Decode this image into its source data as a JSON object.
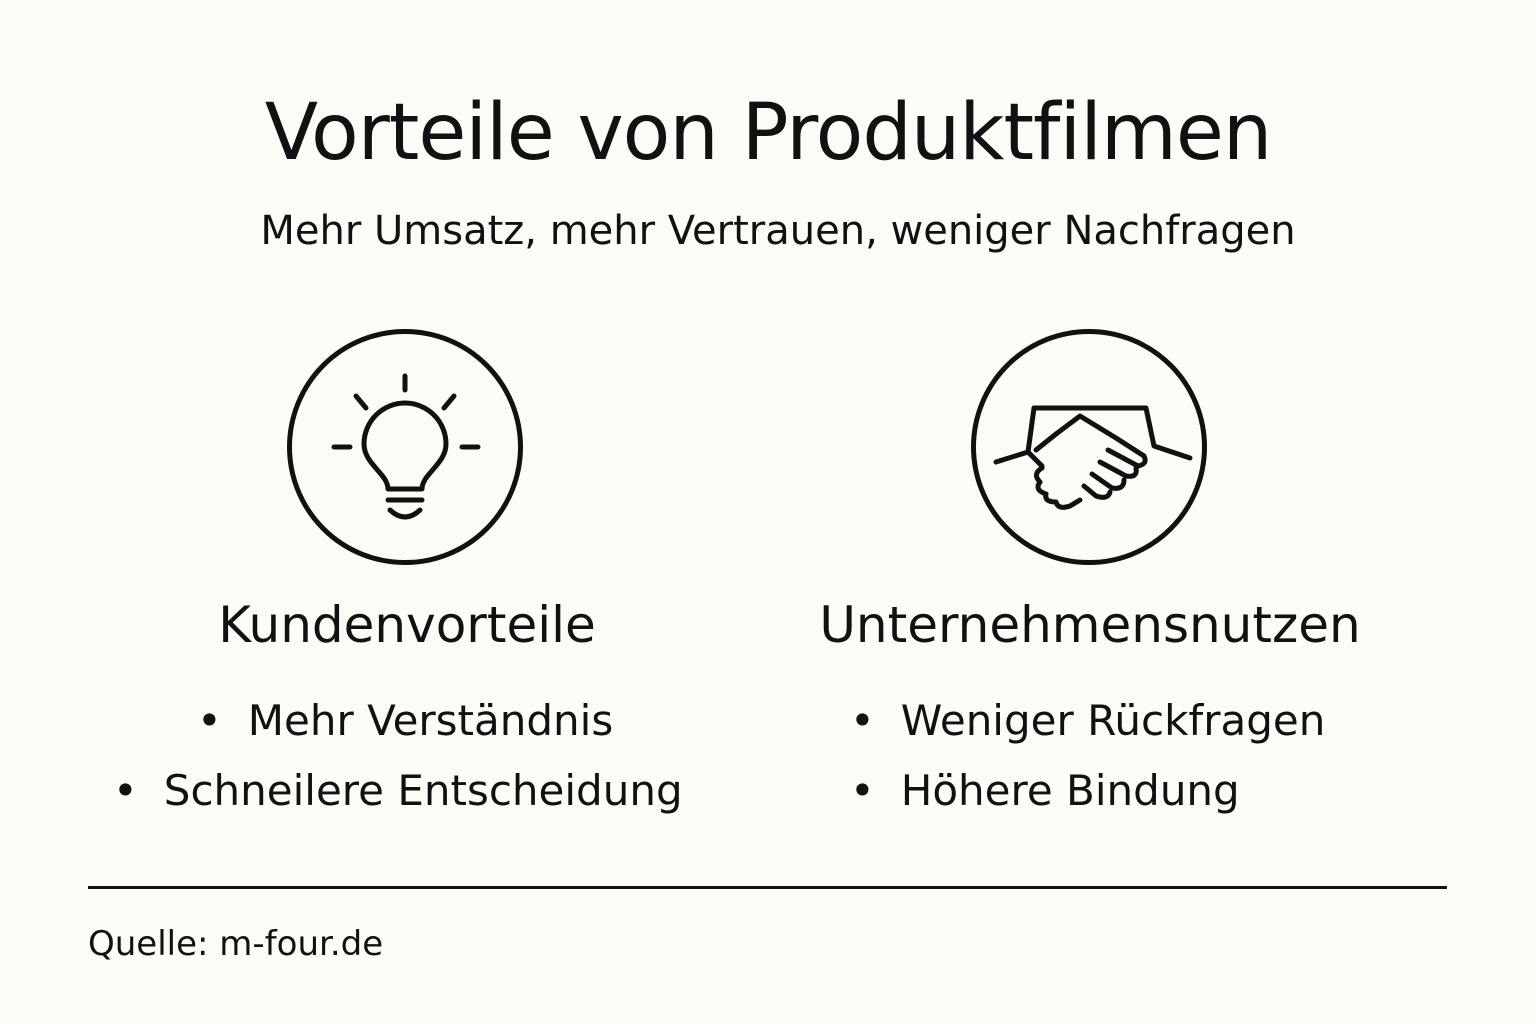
{
  "title": "Vorteile von Produktfilmen",
  "subtitle": "Mehr Umsatz, mehr Vertrauen, weniger Nachfragen",
  "columns": [
    {
      "icon": "lightbulb-icon",
      "heading": "Kundenvorteile",
      "items": [
        "Mehr Verständnis",
        "Schneilere Entscheidung"
      ]
    },
    {
      "icon": "handshake-icon",
      "heading": "Unternehmensnutzen",
      "items": [
        "Weniger Rückfragen",
        "Höhere Bindung"
      ]
    }
  ],
  "source": "Quelle: m-four.de"
}
